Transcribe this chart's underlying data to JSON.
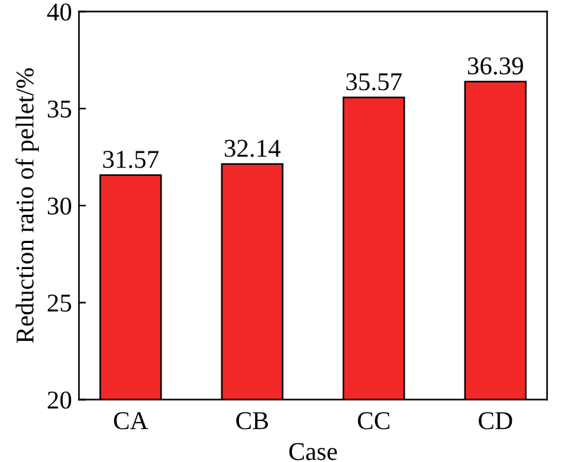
{
  "chart_data": {
    "type": "bar",
    "xlabel": "Case",
    "ylabel": "Reduction ratio of pellet/%",
    "categories": [
      "CA",
      "CB",
      "CC",
      "CD"
    ],
    "values": [
      31.57,
      32.14,
      35.57,
      36.39
    ],
    "color": "#f22828",
    "ylim": [
      20,
      40
    ],
    "yticks": [
      20,
      25,
      30,
      35,
      40
    ],
    "data_labels": true,
    "grid": false
  }
}
